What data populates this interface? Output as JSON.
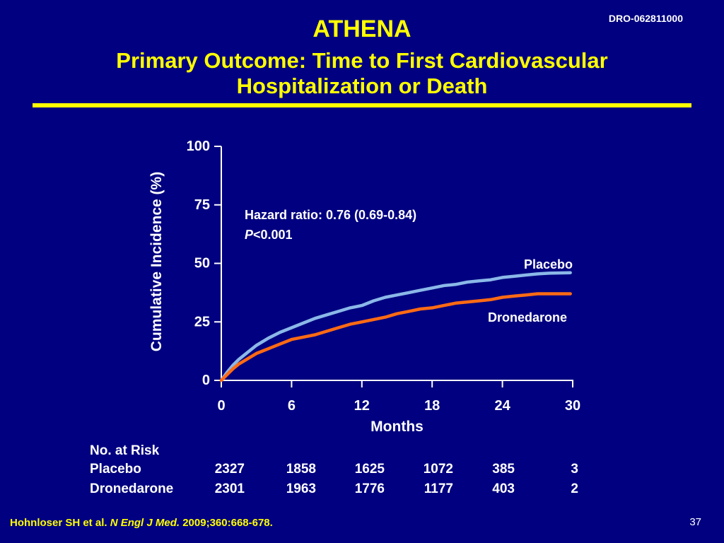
{
  "slide": {
    "doc_code": "DRO-062811000",
    "title": "ATHENA",
    "subtitle_line1": "Primary Outcome: Time to First Cardiovascular",
    "subtitle_line2": "Hospitalization or Death",
    "page_number": "37",
    "citation": {
      "authors": "Hohnloser SH et al.",
      "journal": "N Engl J Med.",
      "ref": "2009;360:668-678."
    },
    "colors": {
      "background": "#000080",
      "title": "#ffff00",
      "placebo": "#8bb8e8",
      "dronedarone": "#ff6a13"
    }
  },
  "chart_data": {
    "type": "line",
    "xlabel": "Months",
    "ylabel": "Cumulative Incidence (%)",
    "xlim": [
      0,
      30
    ],
    "ylim": [
      0,
      100
    ],
    "x_ticks": [
      0,
      6,
      12,
      18,
      24,
      30
    ],
    "y_ticks": [
      0,
      25,
      50,
      75,
      100
    ],
    "annotation_hr": "Hazard ratio: 0.76 (0.69-0.84)",
    "annotation_p_italic": "P",
    "annotation_p_rest": "<0.001",
    "series": [
      {
        "name": "Placebo",
        "color": "#8bb8e8",
        "x": [
          0,
          0.5,
          1,
          1.5,
          2,
          2.5,
          3,
          3.5,
          4,
          5,
          6,
          7,
          8,
          9,
          10,
          11,
          12,
          13,
          14,
          15,
          16,
          17,
          18,
          19,
          20,
          21,
          22,
          23,
          24,
          25,
          26,
          27,
          28,
          29.8
        ],
        "y": [
          0,
          3.5,
          6.5,
          9,
          11,
          13,
          15,
          16.5,
          18,
          20.5,
          22.5,
          24.5,
          26.5,
          28,
          29.5,
          31,
          32,
          34,
          35.5,
          36.5,
          37.5,
          38.5,
          39.5,
          40.5,
          41,
          42,
          42.5,
          43,
          44,
          44.5,
          45,
          45.5,
          45.8,
          46
        ]
      },
      {
        "name": "Dronedarone",
        "color": "#ff6a13",
        "x": [
          0,
          0.5,
          1,
          1.5,
          2,
          2.5,
          3,
          3.5,
          4,
          5,
          6,
          7,
          8,
          9,
          10,
          11,
          12,
          13,
          14,
          15,
          16,
          17,
          18,
          19,
          20,
          21,
          22,
          23,
          24,
          25,
          26,
          27,
          28,
          29.8
        ],
        "y": [
          0,
          2.5,
          5,
          7,
          8.5,
          10,
          11.5,
          12.5,
          13.5,
          15.5,
          17.5,
          18.5,
          19.5,
          21,
          22.5,
          24,
          25,
          26,
          27,
          28.5,
          29.5,
          30.5,
          31,
          32,
          33,
          33.5,
          34,
          34.5,
          35.5,
          36,
          36.5,
          37,
          37,
          37
        ]
      }
    ]
  },
  "risk_table": {
    "title": "No. at Risk",
    "rows": [
      {
        "label": "Placebo",
        "values": [
          "2327",
          "1858",
          "1625",
          "1072",
          "385",
          "3"
        ]
      },
      {
        "label": "Dronedarone",
        "values": [
          "2301",
          "1963",
          "1776",
          "1177",
          "403",
          "2"
        ]
      }
    ]
  }
}
